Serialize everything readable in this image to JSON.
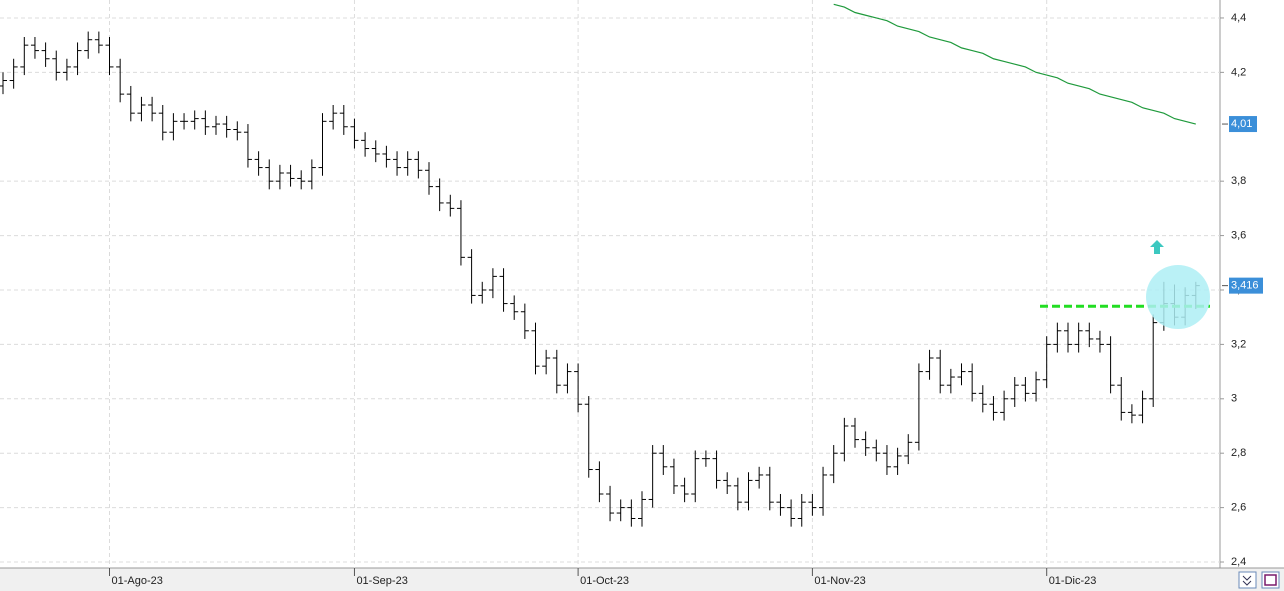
{
  "chart_data": {
    "type": "ohlc",
    "color": "#000000",
    "grid": true,
    "ylim": [
      2.378,
      4.466
    ],
    "yticks": [
      {
        "value": 2.4,
        "label": "2,4"
      },
      {
        "value": 2.6,
        "label": "2,6"
      },
      {
        "value": 2.8,
        "label": "2,8"
      },
      3,
      {
        "value": 3.2,
        "label": "3,2"
      },
      {
        "value": 3.4,
        "label": "3,4"
      },
      {
        "value": 3.6,
        "label": "3,6"
      },
      {
        "value": 3.8,
        "label": "3,8"
      },
      {
        "value": 4.2,
        "label": "4,2"
      },
      {
        "value": 4.4,
        "label": "4,4"
      }
    ],
    "categories": [
      null,
      null,
      null,
      null,
      null,
      null,
      null,
      null,
      null,
      null,
      "01-Ago-23",
      null,
      null,
      null,
      null,
      null,
      null,
      null,
      null,
      null,
      null,
      null,
      null,
      null,
      null,
      null,
      null,
      null,
      null,
      null,
      null,
      null,
      null,
      "01-Sep-23",
      null,
      null,
      null,
      null,
      null,
      null,
      null,
      null,
      null,
      null,
      null,
      null,
      null,
      null,
      null,
      null,
      null,
      null,
      null,
      null,
      "01-Oct-23",
      null,
      null,
      null,
      null,
      null,
      null,
      null,
      null,
      null,
      null,
      null,
      null,
      null,
      null,
      null,
      null,
      null,
      null,
      null,
      null,
      null,
      "01-Nov-23",
      null,
      null,
      null,
      null,
      null,
      null,
      null,
      null,
      null,
      null,
      null,
      null,
      null,
      null,
      null,
      null,
      null,
      null,
      null,
      null,
      null,
      "01-Dic-23",
      null,
      null,
      null,
      null,
      null,
      null,
      null,
      null,
      null,
      null,
      null,
      null,
      null,
      null
    ],
    "open": [
      4.15,
      4.17,
      4.22,
      4.3,
      4.28,
      4.25,
      4.2,
      4.22,
      4.28,
      4.32,
      4.3,
      4.22,
      4.12,
      4.05,
      4.08,
      4.05,
      3.98,
      4.02,
      4.02,
      4.03,
      4.0,
      4.01,
      3.99,
      3.98,
      3.88,
      3.85,
      3.8,
      3.83,
      3.81,
      3.8,
      3.85,
      4.02,
      4.05,
      4.0,
      3.95,
      3.92,
      3.9,
      3.88,
      3.85,
      3.88,
      3.84,
      3.78,
      3.72,
      3.7,
      3.52,
      3.38,
      3.4,
      3.45,
      3.35,
      3.32,
      3.25,
      3.12,
      3.15,
      3.05,
      3.1,
      2.98,
      2.74,
      2.65,
      2.58,
      2.6,
      2.56,
      2.63,
      2.8,
      2.75,
      2.68,
      2.65,
      2.78,
      2.78,
      2.7,
      2.68,
      2.62,
      2.7,
      2.72,
      2.62,
      2.6,
      2.56,
      2.62,
      2.6,
      2.72,
      2.8,
      2.9,
      2.85,
      2.82,
      2.8,
      2.75,
      2.79,
      2.84,
      3.1,
      3.15,
      3.05,
      3.08,
      3.1,
      3.02,
      2.98,
      2.95,
      3.0,
      3.05,
      3.02,
      3.07,
      3.2,
      3.25,
      3.2,
      3.25,
      3.22,
      3.2,
      3.05,
      2.95,
      2.94,
      3.0,
      3.28,
      3.35,
      3.3,
      3.38
    ],
    "high": [
      4.2,
      4.25,
      4.33,
      4.33,
      4.31,
      4.28,
      4.25,
      4.31,
      4.35,
      4.35,
      4.33,
      4.25,
      4.15,
      4.11,
      4.11,
      4.08,
      4.05,
      4.05,
      4.06,
      4.06,
      4.04,
      4.04,
      4.02,
      4.01,
      3.91,
      3.88,
      3.86,
      3.86,
      3.84,
      3.88,
      4.05,
      4.08,
      4.08,
      4.03,
      3.98,
      3.95,
      3.93,
      3.91,
      3.91,
      3.91,
      3.87,
      3.81,
      3.75,
      3.73,
      3.55,
      3.43,
      3.48,
      3.48,
      3.38,
      3.35,
      3.28,
      3.18,
      3.18,
      3.13,
      3.13,
      3.01,
      2.77,
      2.68,
      2.63,
      2.63,
      2.66,
      2.83,
      2.83,
      2.78,
      2.71,
      2.81,
      2.81,
      2.81,
      2.73,
      2.71,
      2.73,
      2.75,
      2.75,
      2.65,
      2.63,
      2.65,
      2.65,
      2.75,
      2.83,
      2.93,
      2.93,
      2.88,
      2.85,
      2.83,
      2.82,
      2.87,
      3.13,
      3.18,
      3.18,
      3.11,
      3.13,
      3.13,
      3.05,
      3.01,
      3.03,
      3.08,
      3.08,
      3.1,
      3.23,
      3.28,
      3.28,
      3.28,
      3.28,
      3.25,
      3.23,
      3.08,
      2.98,
      3.03,
      3.31,
      3.43,
      3.42,
      3.41,
      3.43
    ],
    "low": [
      4.12,
      4.14,
      4.19,
      4.25,
      4.22,
      4.17,
      4.17,
      4.19,
      4.25,
      4.27,
      4.19,
      4.09,
      4.02,
      4.02,
      4.02,
      3.95,
      3.95,
      3.99,
      3.99,
      3.97,
      3.97,
      3.96,
      3.95,
      3.85,
      3.82,
      3.77,
      3.77,
      3.78,
      3.77,
      3.77,
      3.82,
      3.99,
      3.97,
      3.92,
      3.89,
      3.87,
      3.85,
      3.82,
      3.82,
      3.81,
      3.75,
      3.69,
      3.67,
      3.49,
      3.35,
      3.35,
      3.37,
      3.32,
      3.29,
      3.22,
      3.09,
      3.09,
      3.02,
      3.02,
      2.95,
      2.71,
      2.62,
      2.55,
      2.55,
      2.53,
      2.53,
      2.6,
      2.72,
      2.65,
      2.62,
      2.62,
      2.75,
      2.67,
      2.65,
      2.59,
      2.59,
      2.67,
      2.59,
      2.57,
      2.53,
      2.53,
      2.57,
      2.57,
      2.69,
      2.77,
      2.82,
      2.79,
      2.77,
      2.72,
      2.72,
      2.76,
      2.81,
      3.07,
      3.02,
      3.02,
      3.05,
      2.99,
      2.95,
      2.92,
      2.92,
      2.97,
      2.99,
      2.99,
      3.04,
      3.17,
      3.17,
      3.17,
      3.19,
      3.17,
      3.02,
      2.92,
      2.91,
      2.91,
      2.97,
      3.25,
      3.27,
      3.27,
      3.33
    ],
    "close": [
      4.17,
      4.22,
      4.3,
      4.28,
      4.25,
      4.2,
      4.22,
      4.28,
      4.32,
      4.3,
      4.22,
      4.12,
      4.05,
      4.08,
      4.05,
      3.98,
      4.02,
      4.02,
      4.03,
      4.0,
      4.01,
      3.99,
      3.98,
      3.88,
      3.85,
      3.8,
      3.83,
      3.81,
      3.8,
      3.85,
      4.02,
      4.05,
      4.0,
      3.95,
      3.92,
      3.9,
      3.88,
      3.85,
      3.88,
      3.84,
      3.78,
      3.72,
      3.7,
      3.52,
      3.38,
      3.4,
      3.45,
      3.35,
      3.32,
      3.25,
      3.12,
      3.15,
      3.05,
      3.1,
      2.98,
      2.74,
      2.65,
      2.58,
      2.6,
      2.56,
      2.63,
      2.8,
      2.75,
      2.68,
      2.65,
      2.78,
      2.78,
      2.7,
      2.68,
      2.62,
      2.7,
      2.72,
      2.62,
      2.6,
      2.56,
      2.62,
      2.6,
      2.72,
      2.8,
      2.9,
      2.85,
      2.82,
      2.8,
      2.75,
      2.79,
      2.84,
      3.1,
      3.15,
      3.05,
      3.08,
      3.1,
      3.02,
      2.98,
      2.95,
      3.0,
      3.05,
      3.02,
      3.07,
      3.2,
      3.25,
      3.2,
      3.25,
      3.22,
      3.2,
      3.05,
      2.95,
      2.94,
      3.0,
      3.28,
      3.35,
      3.3,
      3.38,
      3.416
    ],
    "last_label": "3,416",
    "ma": {
      "color": "#1f9a3c",
      "last_label": "4,01",
      "values": [
        null,
        null,
        null,
        null,
        null,
        null,
        null,
        null,
        null,
        null,
        null,
        null,
        null,
        null,
        null,
        null,
        null,
        null,
        null,
        null,
        null,
        null,
        null,
        null,
        null,
        null,
        null,
        null,
        null,
        null,
        null,
        null,
        null,
        null,
        null,
        null,
        null,
        null,
        null,
        null,
        null,
        null,
        null,
        null,
        null,
        null,
        null,
        null,
        null,
        null,
        null,
        null,
        null,
        null,
        null,
        null,
        null,
        null,
        null,
        null,
        null,
        null,
        null,
        null,
        null,
        null,
        null,
        null,
        null,
        null,
        null,
        null,
        null,
        null,
        null,
        null,
        null,
        null,
        4.45,
        4.44,
        4.42,
        4.41,
        4.4,
        4.39,
        4.37,
        4.36,
        4.35,
        4.33,
        4.32,
        4.31,
        4.29,
        4.28,
        4.27,
        4.25,
        4.24,
        4.23,
        4.22,
        4.2,
        4.19,
        4.18,
        4.16,
        4.15,
        4.14,
        4.12,
        4.11,
        4.1,
        4.09,
        4.07,
        4.06,
        4.05,
        4.03,
        4.02,
        4.01
      ]
    },
    "hline": {
      "value": 3.34,
      "color": "#22dd22"
    }
  }
}
